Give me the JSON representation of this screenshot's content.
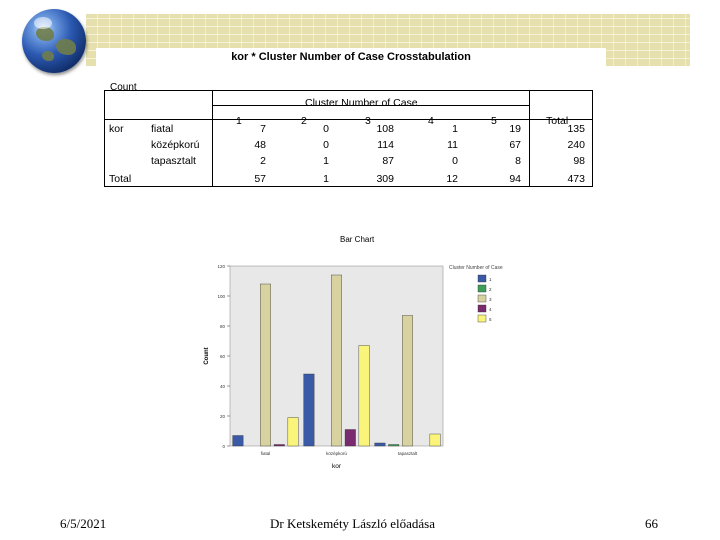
{
  "slide": {
    "title": "kor * Cluster Number of Case Crosstabulation",
    "date": "6/5/2021",
    "author": "Dr Ketskeméty László előadása",
    "page_number": "66"
  },
  "crosstab": {
    "count_label": "Count",
    "column_group_header": "Cluster Number of Case",
    "row_var": "kor",
    "columns": [
      "1",
      "2",
      "3",
      "4",
      "5"
    ],
    "total_label": "Total",
    "rows": [
      {
        "label": "fiatal",
        "values": [
          "7",
          "0",
          "108",
          "1",
          "19"
        ],
        "total": "135"
      },
      {
        "label": "középkorú",
        "values": [
          "48",
          "0",
          "114",
          "11",
          "67"
        ],
        "total": "240"
      },
      {
        "label": "tapasztalt",
        "values": [
          "2",
          "1",
          "87",
          "0",
          "8"
        ],
        "total": "98"
      }
    ],
    "totals": {
      "label": "Total",
      "values": [
        "57",
        "1",
        "309",
        "12",
        "94"
      ],
      "total": "473"
    }
  },
  "chart_data": {
    "type": "bar",
    "title": "Bar Chart",
    "xlabel": "kor",
    "ylabel": "Count",
    "categories": [
      "fiatal",
      "középkorú",
      "tapasztalt"
    ],
    "ylim": [
      0,
      120
    ],
    "yticks": [
      "0",
      "20",
      "40",
      "60",
      "80",
      "100",
      "120"
    ],
    "legend_title": "Cluster Number of Case",
    "legend_position": "right",
    "series": [
      {
        "name": "1",
        "color": "#3a5aa8",
        "values": [
          7,
          48,
          2
        ]
      },
      {
        "name": "2",
        "color": "#3f9d5a",
        "values": [
          0,
          0,
          1
        ]
      },
      {
        "name": "3",
        "color": "#d7d2a0",
        "values": [
          108,
          114,
          87
        ]
      },
      {
        "name": "4",
        "color": "#7a2a6e",
        "values": [
          1,
          11,
          0
        ]
      },
      {
        "name": "5",
        "color": "#faf47a",
        "values": [
          19,
          67,
          8
        ]
      }
    ],
    "plot_background": "#e8e8e8"
  }
}
